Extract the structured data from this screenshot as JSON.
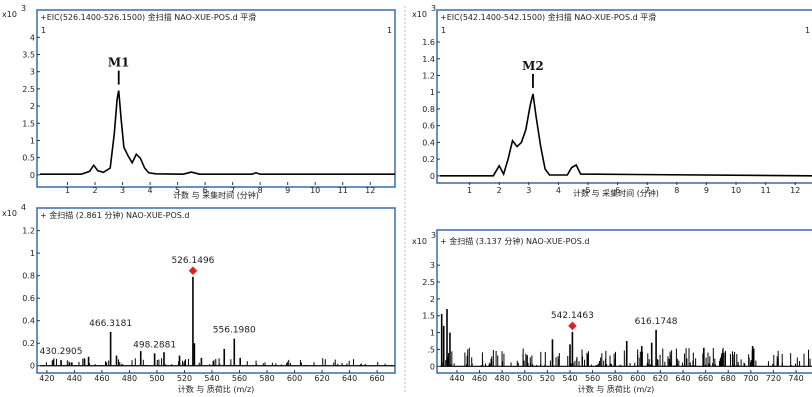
{
  "colors": {
    "frame": "#3a6aa8",
    "trace": "#000000",
    "marker": "#e02020"
  },
  "chart_data": [
    {
      "type": "line",
      "header": "+EIC(526.1400-526.1500) 金扫描 NAO-XUE-POS.d  平滑",
      "corner_left": "1",
      "corner_right": "1",
      "exp_base": "x10",
      "exp_power": "3",
      "xlabel": "计数 与 采集时间 (分钟)",
      "xlim": [
        0,
        12.9
      ],
      "ylim": [
        -0.15,
        4.3
      ],
      "xticks": [
        1,
        2,
        3,
        4,
        5,
        6,
        7,
        8,
        9,
        10,
        11,
        12
      ],
      "yticks": [
        0,
        0.5,
        1,
        1.5,
        2,
        2.5,
        3,
        3.5,
        4
      ],
      "ytick_labels": [
        "0",
        "0.5",
        "1",
        "1.5",
        "2",
        "2.5",
        "3",
        "3.5",
        "4"
      ],
      "series": [
        {
          "x": [
            0.0,
            1.5,
            1.8,
            1.95,
            2.1,
            2.3,
            2.55,
            2.7,
            2.8,
            2.86,
            2.95,
            3.05,
            3.2,
            3.35,
            3.5,
            3.65,
            3.8,
            3.95,
            4.2,
            5.2,
            5.5,
            5.8,
            7.7,
            7.85,
            8.0,
            12.9
          ],
          "y": [
            0.02,
            0.02,
            0.1,
            0.28,
            0.12,
            0.07,
            0.2,
            1.2,
            2.2,
            2.45,
            1.6,
            0.8,
            0.55,
            0.35,
            0.6,
            0.48,
            0.2,
            0.06,
            0.03,
            0.02,
            0.08,
            0.02,
            0.02,
            0.06,
            0.02,
            0.02
          ]
        }
      ],
      "annotations": [
        {
          "label": "M1",
          "x": 2.86
        }
      ]
    },
    {
      "type": "line",
      "header": "+EIC(542.1400-542.1500) 金扫描 NAO-XUE-POS.d  平滑",
      "corner_left": "1",
      "corner_right": "1",
      "exp_base": "x10",
      "exp_power": "3",
      "xlabel": "计数 与 采集时间 (分钟)",
      "xlim": [
        0,
        12.6
      ],
      "ylim": [
        -0.05,
        1.78
      ],
      "xticks": [
        1,
        2,
        3,
        4,
        5,
        6,
        7,
        8,
        9,
        10,
        11,
        12
      ],
      "yticks": [
        0,
        0.2,
        0.4,
        0.6,
        0.8,
        1,
        1.2,
        1.4,
        1.6
      ],
      "ytick_labels": [
        "0",
        "0.2",
        "0.4",
        "0.6",
        "0.8",
        "1",
        "1.2",
        "1.4",
        "1.6"
      ],
      "series": [
        {
          "x": [
            0.0,
            1.8,
            2.0,
            2.15,
            2.3,
            2.45,
            2.6,
            2.75,
            2.9,
            3.05,
            3.14,
            3.25,
            3.4,
            3.55,
            3.7,
            4.3,
            4.45,
            4.6,
            4.75,
            12.6
          ],
          "y": [
            0.0,
            0.0,
            0.12,
            0.02,
            0.2,
            0.42,
            0.35,
            0.4,
            0.55,
            0.85,
            0.98,
            0.7,
            0.35,
            0.08,
            0.01,
            0.01,
            0.1,
            0.13,
            0.02,
            0.0
          ]
        }
      ],
      "annotations": [
        {
          "label": "M2",
          "x": 3.14
        }
      ]
    },
    {
      "type": "stick",
      "header": "+ 金扫描 (2.861 分钟) NAO-XUE-POS.d",
      "exp_base": "x10",
      "exp_power": "4",
      "xlabel": "计数 与 质荷比 (m/z)",
      "xlim": [
        415,
        673
      ],
      "ylim": [
        -0.02,
        1.25
      ],
      "xticks": [
        420,
        440,
        460,
        480,
        500,
        520,
        540,
        560,
        580,
        600,
        620,
        640,
        660
      ],
      "yticks": [
        0,
        0.2,
        0.4,
        0.6,
        0.8,
        1,
        1.2
      ],
      "ytick_labels": [
        "0",
        "0.2",
        "0.4",
        "0.6",
        "0.8",
        "1",
        "1.2"
      ],
      "peaks": [
        {
          "mz": 430.2905,
          "i": 0.05,
          "label": "430.2905"
        },
        {
          "mz": 466.3181,
          "i": 0.3,
          "label": "466.3181"
        },
        {
          "mz": 498.2881,
          "i": 0.11,
          "label": "498.2881"
        },
        {
          "mz": 526.1496,
          "i": 0.79,
          "label": "526.1496",
          "marked": true
        },
        {
          "mz": 556.198,
          "i": 0.24,
          "label": "556.1980"
        },
        {
          "mz": 450.3,
          "i": 0.08
        },
        {
          "mz": 470.6,
          "i": 0.09
        },
        {
          "mz": 488.2,
          "i": 0.13
        },
        {
          "mz": 505.1,
          "i": 0.12
        },
        {
          "mz": 516.4,
          "i": 0.09
        },
        {
          "mz": 527.2,
          "i": 0.2
        },
        {
          "mz": 532.3,
          "i": 0.07
        },
        {
          "mz": 548.9,
          "i": 0.15
        },
        {
          "mz": 560.5,
          "i": 0.07
        }
      ]
    },
    {
      "type": "stick",
      "header": "+ 金扫描 (3.137 分钟) NAO-XUE-POS.d",
      "exp_base": "x10",
      "exp_power": "3",
      "xlabel": "计数 与 质荷比 (m/z)",
      "xlim": [
        425,
        755
      ],
      "ylim": [
        -0.05,
        3.45
      ],
      "xticks": [
        440,
        460,
        480,
        500,
        520,
        540,
        560,
        580,
        600,
        620,
        640,
        660,
        680,
        700,
        720,
        740
      ],
      "yticks": [
        0,
        0.5,
        1,
        1.5,
        2,
        2.5,
        3
      ],
      "ytick_labels": [
        "0",
        ".5",
        "1",
        "1.5",
        "2",
        "2.5",
        "3"
      ],
      "peaks": [
        {
          "mz": 542.1463,
          "i": 1.02,
          "label": "542.1463",
          "marked": true
        },
        {
          "mz": 616.1748,
          "i": 1.08,
          "label": "616.1748"
        },
        {
          "mz": 426.5,
          "i": 1.55
        },
        {
          "mz": 428.3,
          "i": 1.2
        },
        {
          "mz": 431.2,
          "i": 1.7
        },
        {
          "mz": 433.8,
          "i": 1.0
        },
        {
          "mz": 524.5,
          "i": 0.8
        },
        {
          "mz": 540.0,
          "i": 0.65
        },
        {
          "mz": 590.2,
          "i": 0.75
        },
        {
          "mz": 603.5,
          "i": 0.6
        },
        {
          "mz": 612.3,
          "i": 0.7
        },
        {
          "mz": 658.4,
          "i": 0.55
        },
        {
          "mz": 701.6,
          "i": 0.6
        }
      ]
    }
  ]
}
